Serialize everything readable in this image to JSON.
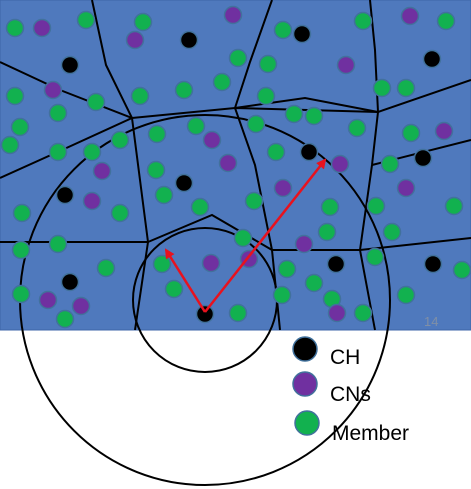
{
  "colors": {
    "field": "#4f79bd",
    "field_border": "#3d65a8",
    "cluster_line": "#000000",
    "ring": "#000000",
    "arrow": "#e8121e",
    "ch": "#000000",
    "cn": "#7030a0",
    "member": "#12b14f",
    "node_outline": "#41719c"
  },
  "legend": {
    "ch_label": "CH",
    "cn_label": "CNs",
    "member_label": "Member"
  },
  "slide_number": "14",
  "icons": {
    "ch": "black-circle",
    "cn": "purple-circle",
    "member": "green-circle"
  }
}
